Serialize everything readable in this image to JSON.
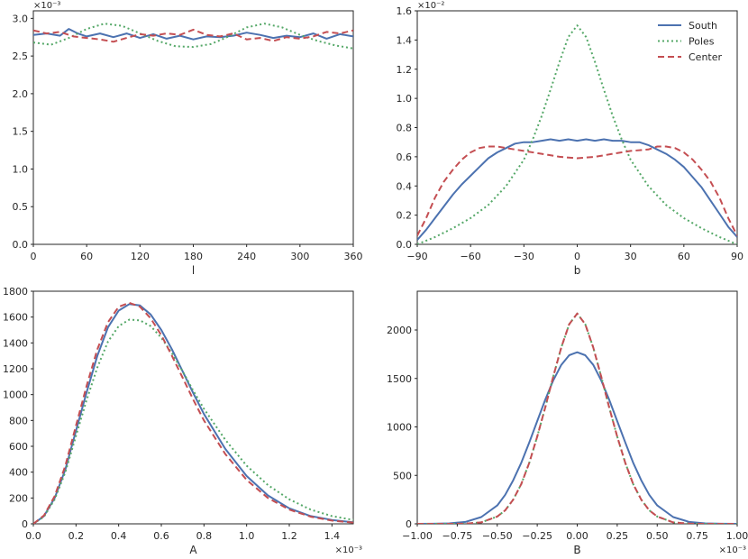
{
  "colors": {
    "South": "#4c72b0",
    "Poles": "#55a868",
    "Center": "#c44e52"
  },
  "chart_data": [
    {
      "id": "l",
      "type": "line",
      "xlabel": "l",
      "ylabel": "",
      "xlim": [
        0,
        360
      ],
      "ylim": [
        0,
        3.1
      ],
      "xticks": [
        0,
        60,
        120,
        180,
        240,
        300,
        360
      ],
      "xtick_labels": [
        "0",
        "60",
        "120",
        "180",
        "240",
        "300",
        "360"
      ],
      "yticks": [
        0,
        0.5,
        1.0,
        1.5,
        2.0,
        2.5,
        3.0
      ],
      "ytick_labels": [
        "0.0",
        "0.5",
        "1.0",
        "1.5",
        "2.0",
        "2.5",
        "3.0"
      ],
      "y_multiplier": "×10⁻³",
      "x_multiplier": "",
      "legend": false,
      "series": [
        {
          "name": "South",
          "style": "solid",
          "x": [
            0,
            15,
            30,
            40,
            50,
            60,
            75,
            90,
            105,
            120,
            135,
            150,
            165,
            180,
            195,
            210,
            225,
            240,
            255,
            270,
            285,
            300,
            315,
            330,
            345,
            360
          ],
          "y": [
            2.78,
            2.8,
            2.77,
            2.86,
            2.8,
            2.76,
            2.8,
            2.75,
            2.8,
            2.74,
            2.79,
            2.73,
            2.77,
            2.72,
            2.76,
            2.75,
            2.77,
            2.81,
            2.78,
            2.74,
            2.77,
            2.75,
            2.8,
            2.73,
            2.79,
            2.76
          ]
        },
        {
          "name": "Poles",
          "style": "dotted",
          "x": [
            0,
            20,
            40,
            60,
            80,
            100,
            120,
            140,
            160,
            180,
            200,
            220,
            240,
            260,
            280,
            300,
            320,
            340,
            360
          ],
          "y": [
            2.68,
            2.65,
            2.74,
            2.86,
            2.93,
            2.9,
            2.8,
            2.7,
            2.63,
            2.62,
            2.66,
            2.76,
            2.88,
            2.93,
            2.88,
            2.78,
            2.7,
            2.64,
            2.6
          ]
        },
        {
          "name": "Center",
          "style": "dashed",
          "x": [
            0,
            15,
            30,
            45,
            60,
            75,
            90,
            105,
            120,
            135,
            150,
            165,
            180,
            195,
            210,
            225,
            240,
            255,
            270,
            285,
            300,
            315,
            330,
            345,
            360
          ],
          "y": [
            2.84,
            2.8,
            2.82,
            2.76,
            2.74,
            2.72,
            2.69,
            2.74,
            2.79,
            2.77,
            2.8,
            2.78,
            2.85,
            2.78,
            2.76,
            2.8,
            2.72,
            2.74,
            2.7,
            2.75,
            2.73,
            2.76,
            2.82,
            2.8,
            2.84
          ]
        }
      ]
    },
    {
      "id": "b",
      "type": "line",
      "xlabel": "b",
      "ylabel": "",
      "xlim": [
        -90,
        90
      ],
      "ylim": [
        0,
        1.6
      ],
      "xticks": [
        -90,
        -60,
        -30,
        0,
        30,
        60,
        90
      ],
      "xtick_labels": [
        "−90",
        "−60",
        "−30",
        "0",
        "30",
        "60",
        "90"
      ],
      "yticks": [
        0,
        0.2,
        0.4,
        0.6,
        0.8,
        1.0,
        1.2,
        1.4,
        1.6
      ],
      "ytick_labels": [
        "0.0",
        "0.2",
        "0.4",
        "0.6",
        "0.8",
        "1.0",
        "1.2",
        "1.4",
        "1.6"
      ],
      "y_multiplier": "×10⁻²",
      "x_multiplier": "",
      "legend": true,
      "legend_loc": "upper right",
      "series": [
        {
          "name": "South",
          "style": "solid",
          "x": [
            -90,
            -85,
            -80,
            -75,
            -70,
            -65,
            -60,
            -55,
            -50,
            -45,
            -40,
            -35,
            -30,
            -25,
            -20,
            -15,
            -10,
            -5,
            0,
            5,
            10,
            15,
            20,
            25,
            30,
            35,
            40,
            45,
            50,
            55,
            60,
            65,
            70,
            75,
            80,
            85,
            90
          ],
          "y": [
            0.03,
            0.1,
            0.18,
            0.26,
            0.34,
            0.41,
            0.47,
            0.53,
            0.59,
            0.63,
            0.66,
            0.69,
            0.7,
            0.7,
            0.71,
            0.72,
            0.71,
            0.72,
            0.71,
            0.72,
            0.71,
            0.72,
            0.71,
            0.71,
            0.7,
            0.7,
            0.68,
            0.65,
            0.62,
            0.58,
            0.53,
            0.46,
            0.39,
            0.3,
            0.21,
            0.12,
            0.05
          ]
        },
        {
          "name": "Poles",
          "style": "dotted",
          "x": [
            -90,
            -80,
            -70,
            -60,
            -50,
            -40,
            -30,
            -25,
            -20,
            -15,
            -10,
            -5,
            0,
            5,
            10,
            15,
            20,
            25,
            30,
            40,
            50,
            60,
            70,
            80,
            90
          ],
          "y": [
            0.0,
            0.05,
            0.11,
            0.18,
            0.27,
            0.4,
            0.58,
            0.72,
            0.88,
            1.06,
            1.25,
            1.42,
            1.5,
            1.42,
            1.25,
            1.06,
            0.88,
            0.72,
            0.58,
            0.4,
            0.27,
            0.18,
            0.11,
            0.05,
            0.0
          ]
        },
        {
          "name": "Center",
          "style": "dashed",
          "x": [
            -90,
            -85,
            -80,
            -75,
            -70,
            -65,
            -60,
            -55,
            -50,
            -45,
            -40,
            -30,
            -20,
            -10,
            0,
            10,
            20,
            30,
            40,
            45,
            50,
            55,
            60,
            65,
            70,
            75,
            80,
            85,
            90
          ],
          "y": [
            0.06,
            0.18,
            0.32,
            0.43,
            0.51,
            0.58,
            0.63,
            0.66,
            0.67,
            0.67,
            0.66,
            0.64,
            0.62,
            0.6,
            0.59,
            0.6,
            0.62,
            0.64,
            0.65,
            0.67,
            0.67,
            0.66,
            0.63,
            0.58,
            0.51,
            0.43,
            0.32,
            0.18,
            0.06
          ]
        }
      ]
    },
    {
      "id": "A",
      "type": "line",
      "xlabel": "A",
      "ylabel": "",
      "xlim": [
        0,
        1.5
      ],
      "ylim": [
        0,
        1800
      ],
      "xticks": [
        0,
        0.2,
        0.4,
        0.6,
        0.8,
        1.0,
        1.2,
        1.4
      ],
      "xtick_labels": [
        "0.0",
        "0.2",
        "0.4",
        "0.6",
        "0.8",
        "1.0",
        "1.2",
        "1.4"
      ],
      "yticks": [
        0,
        200,
        400,
        600,
        800,
        1000,
        1200,
        1400,
        1600,
        1800
      ],
      "ytick_labels": [
        "0",
        "200",
        "400",
        "600",
        "800",
        "1000",
        "1200",
        "1400",
        "1600",
        "1800"
      ],
      "y_multiplier": "",
      "x_multiplier": "×10⁻³",
      "legend": false,
      "series": [
        {
          "name": "South",
          "style": "solid",
          "x": [
            0,
            0.05,
            0.1,
            0.15,
            0.2,
            0.25,
            0.3,
            0.35,
            0.4,
            0.45,
            0.5,
            0.55,
            0.6,
            0.65,
            0.7,
            0.75,
            0.8,
            0.9,
            1.0,
            1.1,
            1.2,
            1.3,
            1.4,
            1.5
          ],
          "y": [
            0,
            60,
            200,
            420,
            720,
            1020,
            1300,
            1520,
            1650,
            1700,
            1690,
            1620,
            1500,
            1350,
            1180,
            1010,
            850,
            580,
            370,
            220,
            120,
            60,
            30,
            12
          ]
        },
        {
          "name": "Poles",
          "style": "dotted",
          "x": [
            0,
            0.05,
            0.1,
            0.15,
            0.2,
            0.25,
            0.3,
            0.35,
            0.4,
            0.45,
            0.5,
            0.55,
            0.6,
            0.65,
            0.7,
            0.75,
            0.8,
            0.9,
            1.0,
            1.1,
            1.2,
            1.3,
            1.4,
            1.5
          ],
          "y": [
            0,
            55,
            190,
            400,
            680,
            960,
            1210,
            1410,
            1530,
            1580,
            1575,
            1530,
            1440,
            1320,
            1180,
            1030,
            890,
            650,
            450,
            300,
            190,
            110,
            60,
            30
          ]
        },
        {
          "name": "Center",
          "style": "dashed",
          "x": [
            0,
            0.05,
            0.1,
            0.15,
            0.2,
            0.25,
            0.3,
            0.35,
            0.4,
            0.45,
            0.5,
            0.55,
            0.6,
            0.65,
            0.7,
            0.75,
            0.8,
            0.9,
            1.0,
            1.1,
            1.2,
            1.3,
            1.4,
            1.5
          ],
          "y": [
            0,
            65,
            215,
            450,
            760,
            1070,
            1350,
            1560,
            1680,
            1710,
            1680,
            1590,
            1460,
            1300,
            1130,
            960,
            800,
            540,
            340,
            200,
            110,
            55,
            25,
            10
          ]
        }
      ]
    },
    {
      "id": "B",
      "type": "line",
      "xlabel": "B",
      "ylabel": "",
      "xlim": [
        -1.0,
        1.0
      ],
      "ylim": [
        0,
        2400
      ],
      "xticks": [
        -1.0,
        -0.75,
        -0.5,
        -0.25,
        0,
        0.25,
        0.5,
        0.75,
        1.0
      ],
      "xtick_labels": [
        "−1.00",
        "−0.75",
        "−0.50",
        "−0.25",
        "0.00",
        "0.25",
        "0.50",
        "0.75",
        "1.00"
      ],
      "yticks": [
        0,
        500,
        1000,
        1500,
        2000
      ],
      "ytick_labels": [
        "0",
        "500",
        "1000",
        "1500",
        "2000"
      ],
      "y_multiplier": "",
      "x_multiplier": "×10⁻³",
      "legend": false,
      "series": [
        {
          "name": "South",
          "style": "solid",
          "x": [
            -1.0,
            -0.9,
            -0.8,
            -0.7,
            -0.6,
            -0.5,
            -0.45,
            -0.4,
            -0.35,
            -0.3,
            -0.25,
            -0.2,
            -0.15,
            -0.1,
            -0.05,
            0,
            0.05,
            0.1,
            0.15,
            0.2,
            0.25,
            0.3,
            0.35,
            0.4,
            0.45,
            0.5,
            0.6,
            0.7,
            0.8,
            0.9,
            1.0
          ],
          "y": [
            0,
            1,
            5,
            20,
            70,
            190,
            300,
            450,
            630,
            840,
            1060,
            1280,
            1480,
            1640,
            1740,
            1770,
            1740,
            1640,
            1480,
            1280,
            1060,
            840,
            630,
            450,
            300,
            190,
            70,
            20,
            5,
            1,
            0
          ]
        },
        {
          "name": "Poles",
          "style": "dotted",
          "x": [
            -1.0,
            -0.8,
            -0.7,
            -0.6,
            -0.5,
            -0.45,
            -0.4,
            -0.35,
            -0.3,
            -0.25,
            -0.2,
            -0.15,
            -0.1,
            -0.05,
            0,
            0.05,
            0.1,
            0.15,
            0.2,
            0.25,
            0.3,
            0.35,
            0.4,
            0.45,
            0.5,
            0.6,
            0.7,
            0.8,
            1.0
          ],
          "y": [
            0,
            0,
            2,
            15,
            75,
            140,
            250,
            410,
            630,
            900,
            1200,
            1520,
            1820,
            2060,
            2170,
            2060,
            1820,
            1520,
            1200,
            900,
            630,
            410,
            250,
            140,
            75,
            15,
            2,
            0,
            0
          ]
        },
        {
          "name": "Center",
          "style": "dashed",
          "x": [
            -1.0,
            -0.8,
            -0.7,
            -0.6,
            -0.5,
            -0.45,
            -0.4,
            -0.35,
            -0.3,
            -0.25,
            -0.2,
            -0.15,
            -0.1,
            -0.05,
            0,
            0.05,
            0.1,
            0.15,
            0.2,
            0.25,
            0.3,
            0.35,
            0.4,
            0.45,
            0.5,
            0.6,
            0.7,
            0.8,
            1.0
          ],
          "y": [
            0,
            0,
            2,
            15,
            75,
            140,
            250,
            410,
            630,
            900,
            1200,
            1520,
            1820,
            2060,
            2170,
            2060,
            1820,
            1520,
            1200,
            900,
            630,
            410,
            250,
            140,
            75,
            15,
            2,
            0,
            0
          ]
        }
      ]
    }
  ]
}
